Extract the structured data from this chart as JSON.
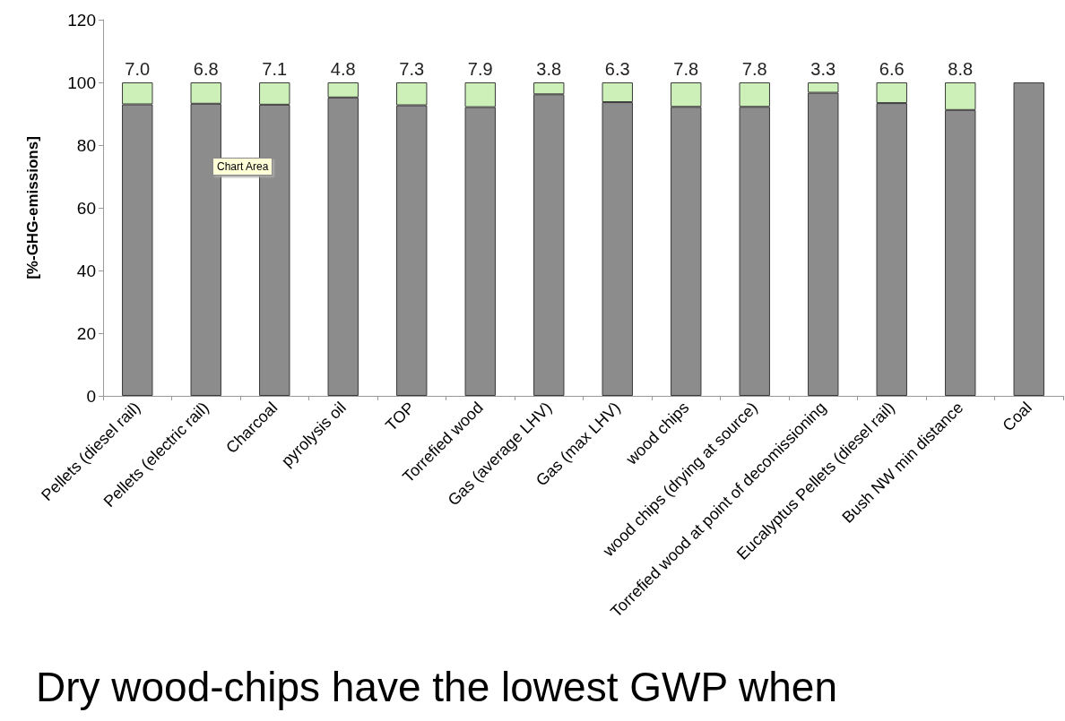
{
  "chart_data": {
    "type": "bar",
    "stacked": true,
    "ylabel": "[%-GHG-emissions]",
    "categories": [
      "Pellets (diesel rail)",
      "Pellets (electric rail)",
      "Charcoal",
      "pyrolysis oil",
      "TOP",
      "Torrefied wood",
      "Gas (average LHV)",
      "Gas (max LHV)",
      "wood chips",
      "wood chips (drying at source)",
      "Torrefied wood at point of decomissioning",
      "Eucalyptus Pellets (diesel rail)",
      "Bush NW min distance",
      "Coal"
    ],
    "series": [
      {
        "color": "#8c8c8c",
        "values": [
          93.0,
          93.2,
          92.9,
          95.2,
          92.7,
          92.1,
          96.2,
          93.7,
          92.2,
          92.2,
          96.7,
          93.4,
          91.2,
          100
        ]
      },
      {
        "color": "#ccf0b8",
        "values": [
          7.0,
          6.8,
          7.1,
          4.8,
          7.3,
          7.9,
          3.8,
          6.3,
          7.8,
          7.8,
          3.3,
          6.6,
          8.8,
          null
        ],
        "value_labels": [
          "7.0",
          "6.8",
          "7.1",
          "4.8",
          "7.3",
          "7.9",
          "3.8",
          "6.3",
          "7.8",
          "7.8",
          "3.3",
          "6.6",
          "8.8",
          null
        ]
      }
    ],
    "ylim": [
      0,
      120
    ],
    "yticks": [
      0,
      20,
      40,
      60,
      80,
      100,
      120
    ],
    "grid": false,
    "annotations": [
      "Chart Area",
      "Dry wood-chips have the lowest GWP when"
    ]
  }
}
